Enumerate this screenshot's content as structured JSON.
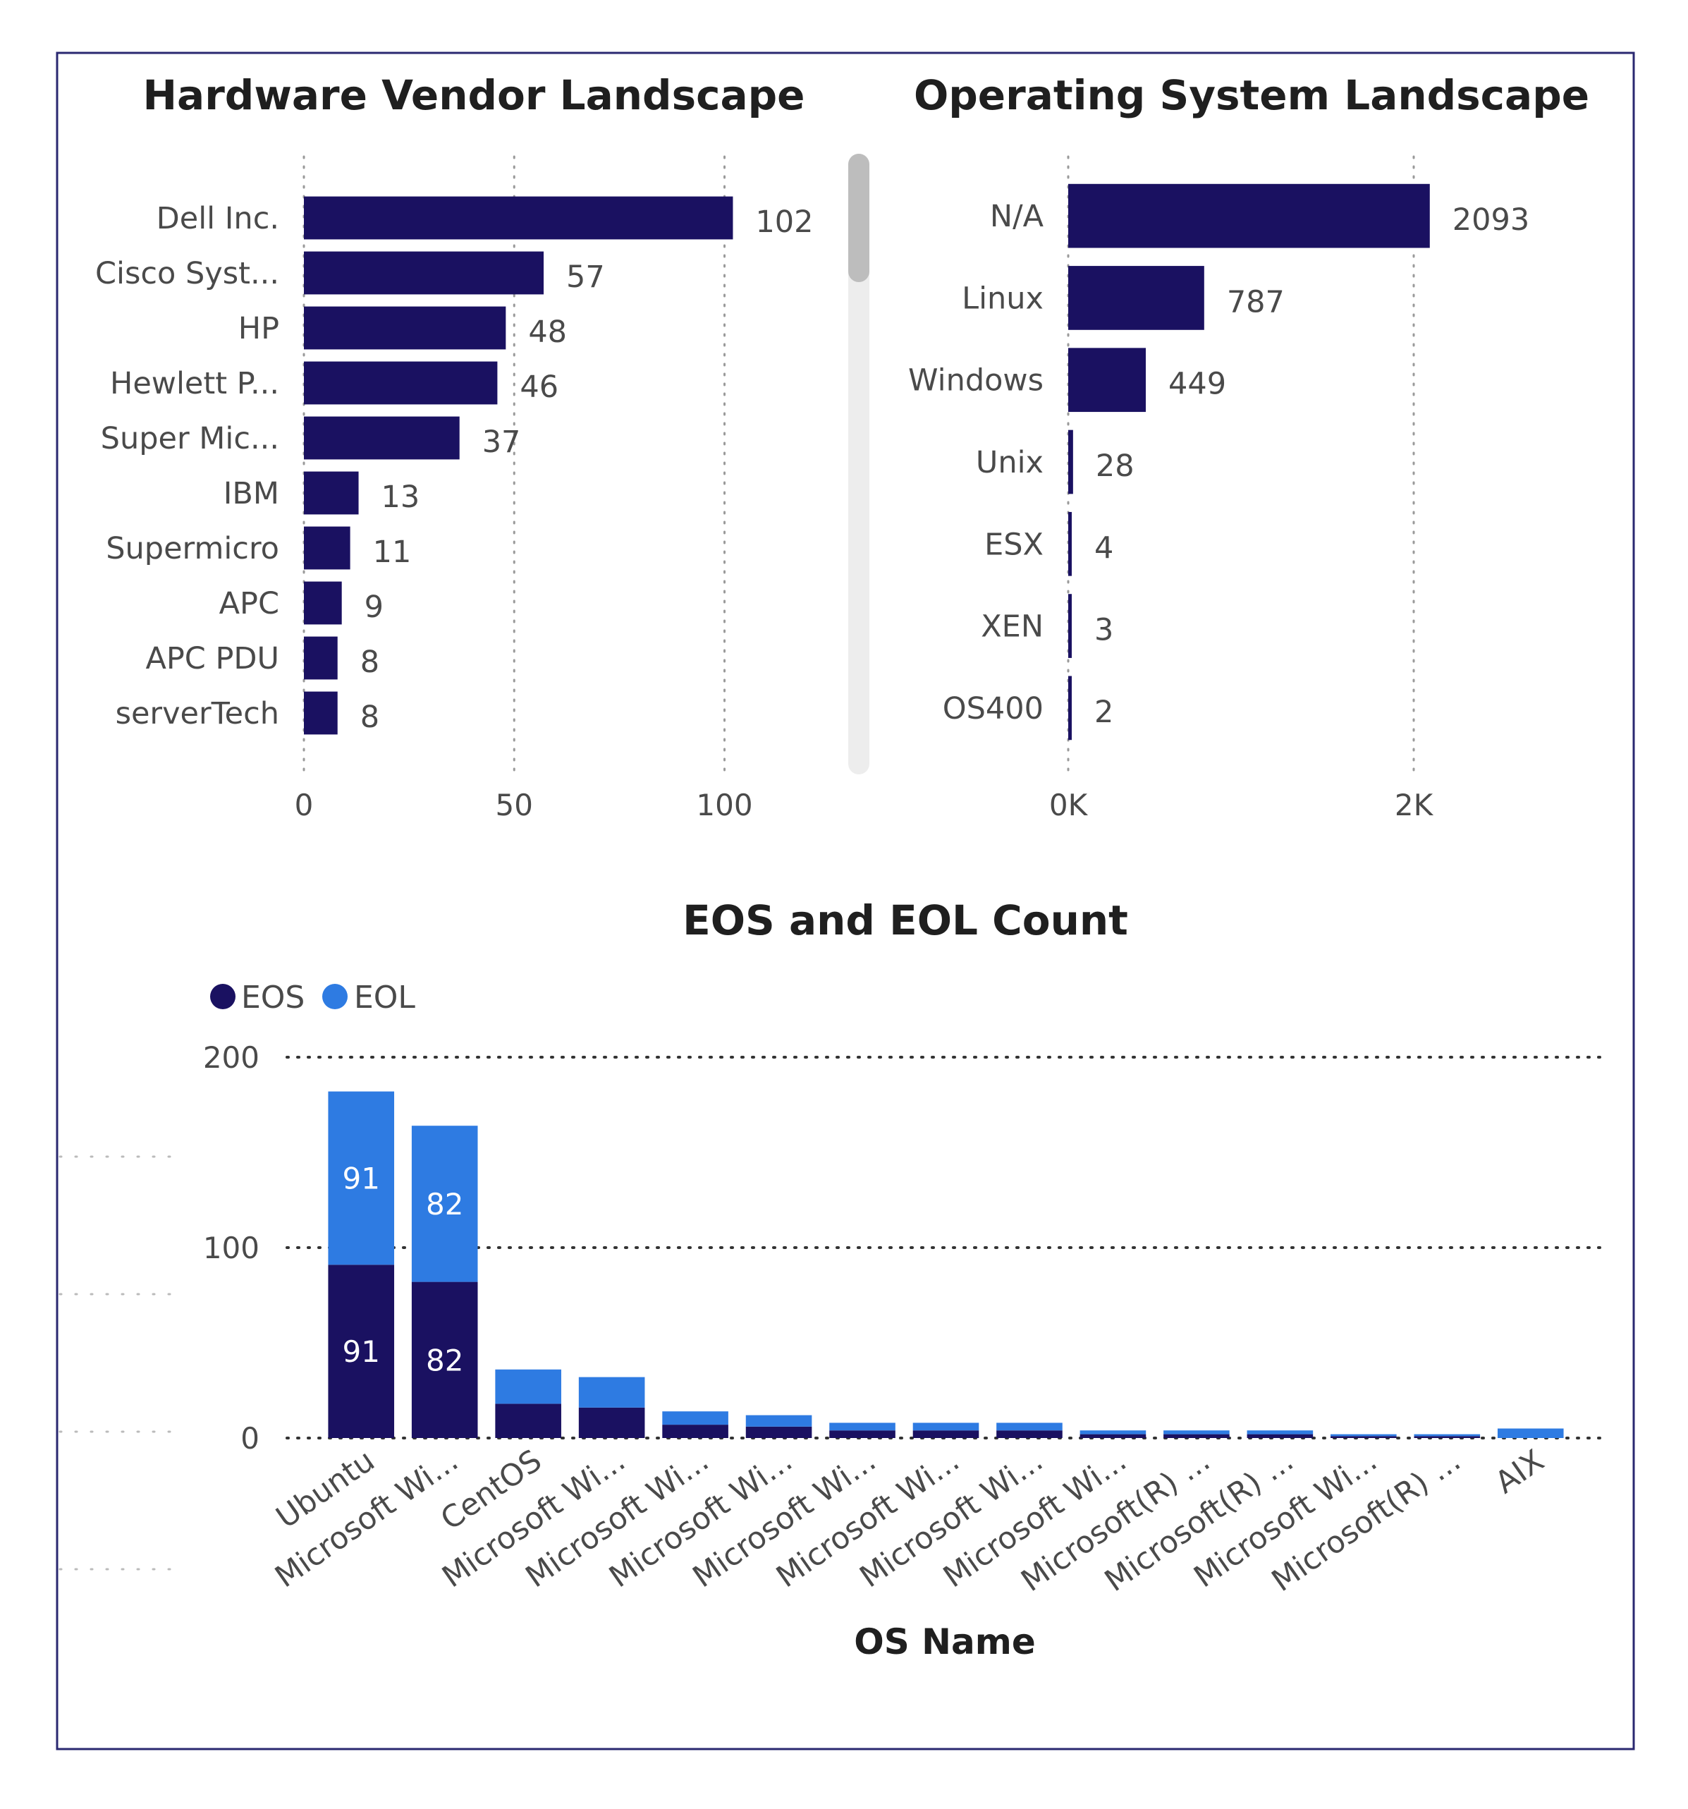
{
  "colors": {
    "eos": "#1A1161",
    "eol": "#2E7BE2",
    "bar": "#1A1161",
    "frame": "#2A2870",
    "label": "#4A4A4A",
    "title": "#1F1F1F",
    "grid": "#9A9A9A",
    "scroll_track": "#EDEDED",
    "scroll_thumb": "#BDBDBD"
  },
  "chart_data": [
    {
      "type": "bar",
      "orientation": "horizontal",
      "title": "Hardware Vendor Landscape",
      "categories": [
        "Dell Inc.",
        "Cisco Syst...",
        "HP",
        "Hewlett P...",
        "Super Mic...",
        "IBM",
        "Supermicro",
        "APC",
        "APC PDU",
        "serverTech"
      ],
      "values": [
        102,
        57,
        48,
        46,
        37,
        13,
        11,
        9,
        8,
        8
      ],
      "xlim": [
        0,
        115
      ],
      "xticks": [
        0,
        50,
        100
      ],
      "xtick_labels": [
        "0",
        "50",
        "100"
      ],
      "grid": true,
      "scrollbar": true
    },
    {
      "type": "bar",
      "orientation": "horizontal",
      "title": "Operating System Landscape",
      "categories": [
        "N/A",
        "Linux",
        "Windows",
        "Unix",
        "ESX",
        "XEN",
        "OS400"
      ],
      "values": [
        2093,
        787,
        449,
        28,
        4,
        3,
        2
      ],
      "xlim": [
        0,
        2400
      ],
      "xticks": [
        0,
        2000
      ],
      "xtick_labels": [
        "0K",
        "2K"
      ],
      "grid": true
    },
    {
      "type": "bar",
      "stacked": true,
      "title": "EOS and EOL Count",
      "xlabel": "OS Name",
      "ylabel": "",
      "ylim": [
        0,
        200
      ],
      "yticks": [
        0,
        100,
        200
      ],
      "ytick_labels": [
        "0",
        "100",
        "200"
      ],
      "grid": true,
      "legend": "top-left",
      "categories": [
        "Ubuntu",
        "Microsoft Wi...",
        "CentOS",
        "Microsoft Wi...",
        "Microsoft Wi...",
        "Microsoft Wi...",
        "Microsoft Wi...",
        "Microsoft Wi...",
        "Microsoft Wi...",
        "Microsoft Wi...",
        "Microsoft(R) ...",
        "Microsoft(R) ...",
        "Microsoft Wi...",
        "Microsoft(R) ...",
        "AIX"
      ],
      "series": [
        {
          "name": "EOS",
          "values": [
            91,
            82,
            18,
            16,
            7,
            6,
            4,
            4,
            4,
            2,
            2,
            2,
            1,
            1,
            0
          ],
          "labels": [
            "91",
            "82",
            "",
            "",
            "",
            "",
            "",
            "",
            "",
            "",
            "",
            "",
            "",
            "",
            ""
          ]
        },
        {
          "name": "EOL",
          "values": [
            91,
            82,
            18,
            16,
            7,
            6,
            4,
            4,
            4,
            2,
            2,
            2,
            1,
            1,
            5
          ],
          "labels": [
            "91",
            "82",
            "",
            "",
            "",
            "",
            "",
            "",
            "",
            "",
            "",
            "",
            "",
            "",
            ""
          ]
        }
      ]
    }
  ]
}
